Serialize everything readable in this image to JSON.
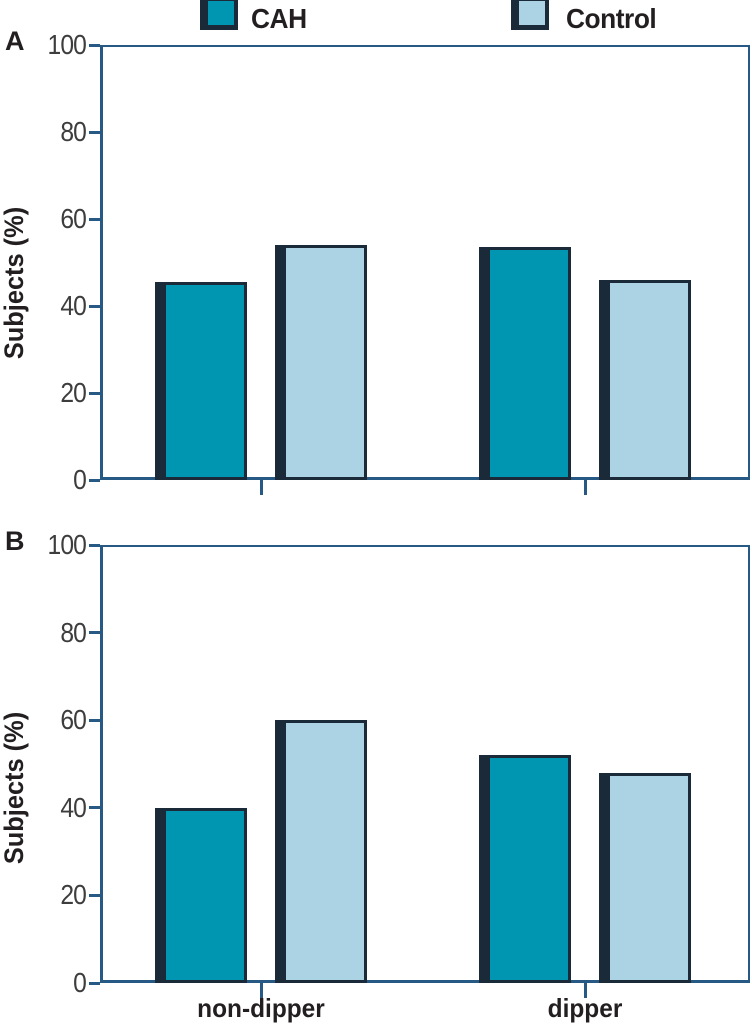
{
  "figure": {
    "legend": {
      "items": [
        {
          "key": "cah",
          "label": "CAH",
          "color": "#0095b1"
        },
        {
          "key": "control",
          "label": "Control",
          "color": "#abd3e4"
        }
      ]
    },
    "ylabel": "Subjects (%)",
    "x_categories": [
      "non-dipper",
      "dipper"
    ],
    "panel_letters": [
      "A",
      "B"
    ],
    "colors": {
      "cah_fill": "#0095b1",
      "control_fill": "#abd3e4",
      "bar_outline": "#1b2a38",
      "axis": "#265a84",
      "tick_text": "#3d3d3d",
      "label_text": "#231f20",
      "background": "#ffffff"
    }
  },
  "chart_data": [
    {
      "panel": "A",
      "type": "bar",
      "categories": [
        "non-dipper",
        "dipper"
      ],
      "series": [
        {
          "name": "CAH",
          "values": [
            45.5,
            53.5
          ]
        },
        {
          "name": "Control",
          "values": [
            54,
            46
          ]
        }
      ],
      "title": "",
      "xlabel": "",
      "ylabel": "Subjects (%)",
      "ylim": [
        0,
        100
      ],
      "yticks": [
        0,
        20,
        40,
        60,
        80,
        100
      ],
      "grid": false,
      "legend_position": "top"
    },
    {
      "panel": "B",
      "type": "bar",
      "categories": [
        "non-dipper",
        "dipper"
      ],
      "series": [
        {
          "name": "CAH",
          "values": [
            40,
            52
          ]
        },
        {
          "name": "Control",
          "values": [
            60,
            48
          ]
        }
      ],
      "title": "",
      "xlabel": "",
      "ylabel": "Subjects (%)",
      "ylim": [
        0,
        100
      ],
      "yticks": [
        0,
        20,
        40,
        60,
        80,
        100
      ],
      "grid": false,
      "legend_position": "none"
    }
  ]
}
